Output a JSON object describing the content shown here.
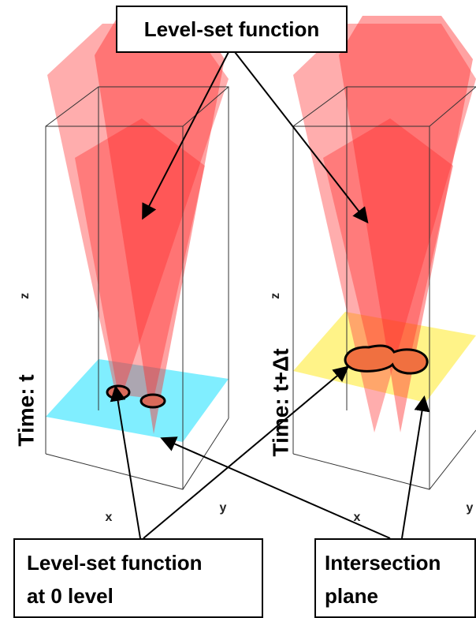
{
  "callouts": {
    "top": "Level-set function",
    "bottom_left": [
      "Level-set function",
      "at 0 level"
    ],
    "bottom_right": [
      "Intersection",
      "plane"
    ]
  },
  "panels": [
    {
      "time_label": "Time: t",
      "axes": {
        "z": "z",
        "x": "x",
        "y": "y"
      }
    },
    {
      "time_label": "Time: t+Δt",
      "axes": {
        "z": "z",
        "x": "x",
        "y": "y"
      }
    }
  ]
}
